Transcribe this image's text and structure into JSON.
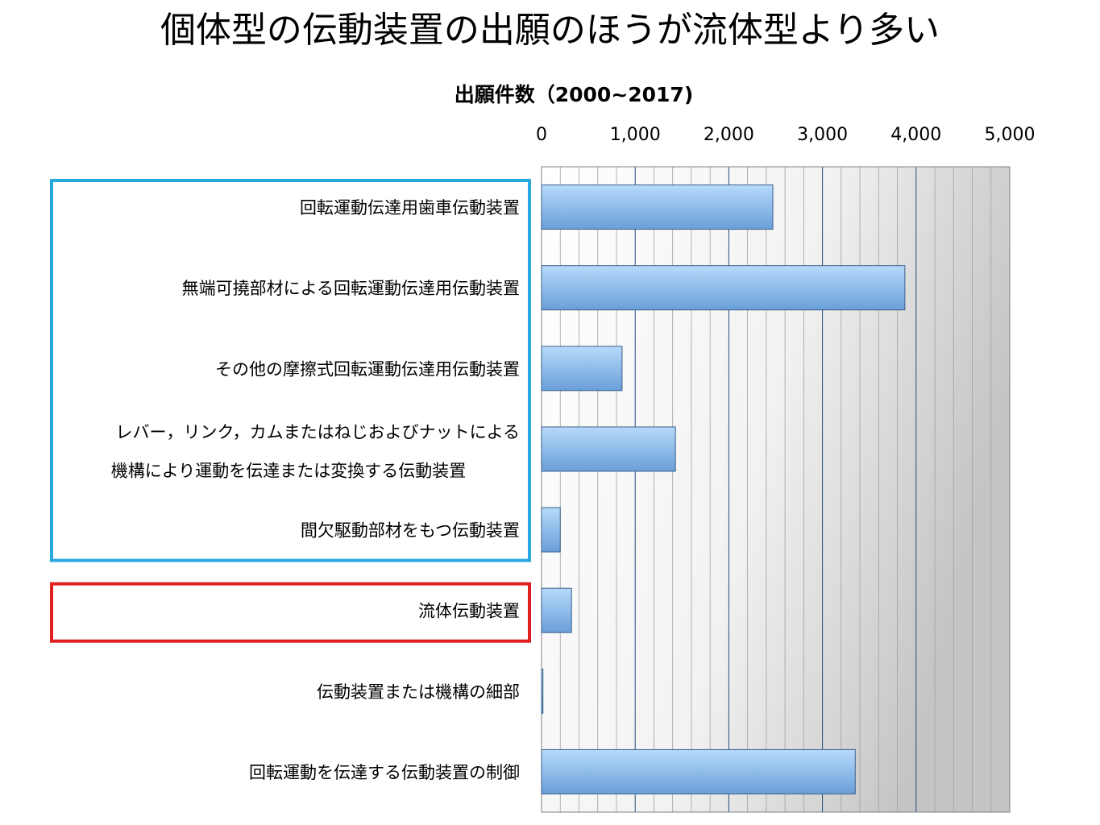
{
  "title": "個体型の伝動装置の出願のほうが流体型より多い",
  "chart_data": {
    "type": "bar",
    "orientation": "horizontal",
    "title": "出願件数（2000~2017)",
    "xlim": [
      0,
      5000
    ],
    "major_ticks": [
      0,
      1000,
      2000,
      3000,
      4000,
      5000
    ],
    "tick_labels": [
      "0",
      "1,000",
      "2,000",
      "3,000",
      "4,000",
      "5,000"
    ],
    "minor_step": 200,
    "grid": true,
    "background": "gradient",
    "categories": [
      [
        "回転運動伝達用歯車伝動装置"
      ],
      [
        "無端可撓部材による回転運動伝達用伝動装置"
      ],
      [
        "その他の摩擦式回転運動伝達用伝動装置"
      ],
      [
        "レバー，リンク，カムまたはねじおよびナットによる",
        "機構により運動を伝達または変換する伝動装置"
      ],
      [
        "間欠駆動部材をもつ伝動装置"
      ],
      [
        "流体伝動装置"
      ],
      [
        "伝動装置または機構の細部"
      ],
      [
        "回転運動を伝達する伝動装置の制御"
      ]
    ],
    "values": [
      2470,
      3880,
      860,
      1430,
      200,
      320,
      15,
      3350
    ],
    "groups": [
      {
        "name": "solid-type",
        "first": 0,
        "last": 4,
        "color": "#29a8e0"
      },
      {
        "name": "fluid-type",
        "first": 5,
        "last": 5,
        "color": "#e02020"
      }
    ],
    "colors": {
      "bar_top": "#b7dafb",
      "bar_bottom": "#6a9fd8",
      "bar_stroke": "#3a5f8a",
      "major_grid": "#1f4e79",
      "minor_grid": "#a0a0a0"
    }
  }
}
